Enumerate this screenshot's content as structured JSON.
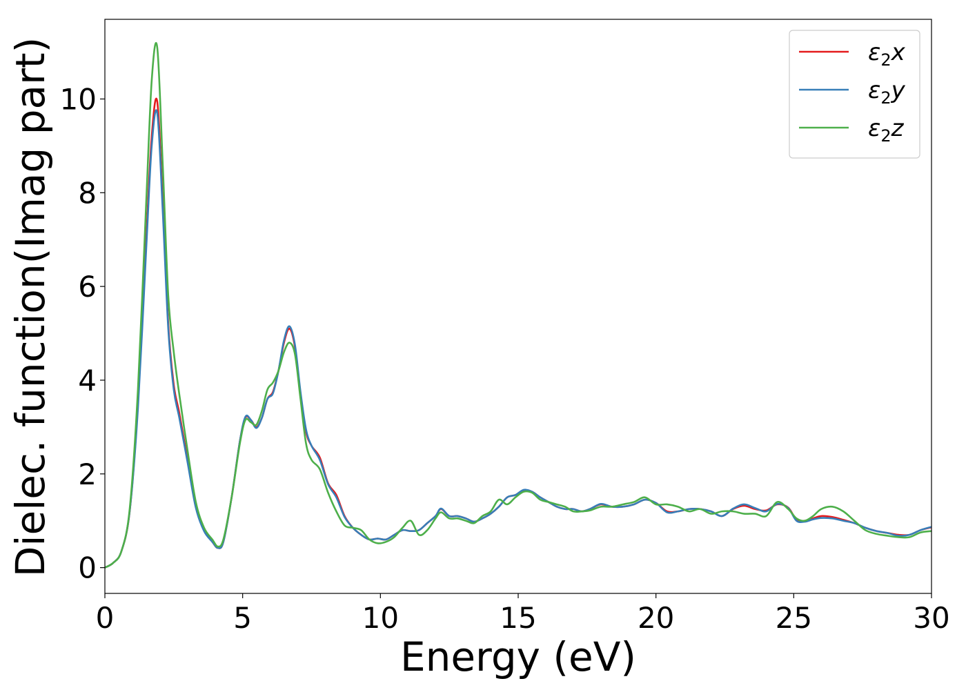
{
  "chart_data": {
    "type": "line",
    "title": "",
    "xlabel": "Energy (eV)",
    "ylabel": "Dielec. function(Imag part)",
    "xlim": [
      0,
      30
    ],
    "ylim": [
      -0.55,
      11.7
    ],
    "xticks": [
      0,
      5,
      10,
      15,
      20,
      25,
      30
    ],
    "yticks": [
      0,
      2,
      4,
      6,
      8,
      10
    ],
    "grid": false,
    "legend_position": "top-right",
    "series": [
      {
        "name": "ε₂x",
        "label_base": "ε",
        "label_sub": "2",
        "label_suffix": "x",
        "color": "#e41a1c",
        "x": [
          0,
          0.3,
          0.6,
          0.9,
          1.2,
          1.5,
          1.7,
          1.9,
          2.1,
          2.3,
          2.5,
          2.7,
          3.0,
          3.3,
          3.6,
          3.9,
          4.1,
          4.3,
          4.6,
          4.9,
          5.1,
          5.3,
          5.5,
          5.7,
          5.9,
          6.1,
          6.3,
          6.5,
          6.7,
          6.9,
          7.1,
          7.3,
          7.5,
          7.8,
          8.1,
          8.4,
          8.7,
          9.0,
          9.3,
          9.6,
          9.9,
          10.2,
          10.5,
          10.8,
          11.1,
          11.4,
          11.7,
          12.0,
          12.2,
          12.5,
          12.8,
          13.1,
          13.4,
          13.7,
          14.0,
          14.3,
          14.6,
          14.9,
          15.2,
          15.5,
          15.8,
          16.1,
          16.4,
          16.7,
          17.0,
          17.3,
          17.6,
          18.0,
          18.4,
          18.8,
          19.2,
          19.6,
          20.0,
          20.4,
          20.8,
          21.2,
          21.6,
          22.0,
          22.4,
          22.8,
          23.2,
          23.6,
          24.0,
          24.4,
          24.8,
          25.1,
          25.4,
          25.7,
          26.0,
          26.4,
          26.8,
          27.2,
          27.6,
          28.0,
          28.4,
          28.8,
          29.2,
          29.6,
          30.0
        ],
        "values": [
          0,
          0.1,
          0.35,
          1.2,
          3.5,
          7.0,
          9.2,
          9.95,
          7.8,
          5.2,
          3.9,
          3.3,
          2.3,
          1.3,
          0.8,
          0.55,
          0.42,
          0.55,
          1.5,
          2.7,
          3.2,
          3.15,
          3.0,
          3.2,
          3.6,
          3.75,
          4.2,
          4.8,
          5.1,
          4.7,
          3.7,
          2.9,
          2.6,
          2.35,
          1.8,
          1.55,
          1.1,
          0.85,
          0.7,
          0.6,
          0.62,
          0.6,
          0.7,
          0.8,
          0.78,
          0.8,
          0.95,
          1.1,
          1.25,
          1.1,
          1.1,
          1.05,
          0.98,
          1.05,
          1.15,
          1.3,
          1.5,
          1.55,
          1.65,
          1.62,
          1.5,
          1.4,
          1.3,
          1.25,
          1.25,
          1.2,
          1.25,
          1.35,
          1.3,
          1.3,
          1.35,
          1.45,
          1.38,
          1.2,
          1.2,
          1.25,
          1.25,
          1.2,
          1.1,
          1.25,
          1.32,
          1.25,
          1.22,
          1.35,
          1.28,
          1.02,
          1.0,
          1.05,
          1.1,
          1.08,
          1.02,
          0.95,
          0.85,
          0.78,
          0.74,
          0.7,
          0.7,
          0.8,
          0.86
        ]
      },
      {
        "name": "ε₂y",
        "label_base": "ε",
        "label_sub": "2",
        "label_suffix": "y",
        "color": "#377eb8",
        "x": [
          0,
          0.3,
          0.6,
          0.9,
          1.2,
          1.5,
          1.7,
          1.9,
          2.1,
          2.3,
          2.5,
          2.7,
          3.0,
          3.3,
          3.6,
          3.9,
          4.1,
          4.3,
          4.6,
          4.9,
          5.1,
          5.3,
          5.5,
          5.7,
          5.9,
          6.1,
          6.3,
          6.5,
          6.7,
          6.9,
          7.1,
          7.3,
          7.5,
          7.8,
          8.1,
          8.4,
          8.7,
          9.0,
          9.3,
          9.6,
          9.9,
          10.2,
          10.5,
          10.8,
          11.1,
          11.4,
          11.7,
          12.0,
          12.2,
          12.5,
          12.8,
          13.1,
          13.4,
          13.7,
          14.0,
          14.3,
          14.6,
          14.9,
          15.2,
          15.5,
          15.8,
          16.1,
          16.4,
          16.7,
          17.0,
          17.3,
          17.6,
          18.0,
          18.4,
          18.8,
          19.2,
          19.6,
          20.0,
          20.4,
          20.8,
          21.2,
          21.6,
          22.0,
          22.4,
          22.8,
          23.2,
          23.6,
          24.0,
          24.4,
          24.8,
          25.1,
          25.4,
          25.7,
          26.0,
          26.4,
          26.8,
          27.2,
          27.6,
          28.0,
          28.4,
          28.8,
          29.2,
          29.6,
          30.0
        ],
        "values": [
          0,
          0.1,
          0.35,
          1.2,
          3.4,
          6.8,
          9.0,
          9.7,
          7.6,
          5.1,
          3.8,
          3.2,
          2.25,
          1.28,
          0.78,
          0.55,
          0.42,
          0.55,
          1.5,
          2.7,
          3.22,
          3.15,
          2.98,
          3.2,
          3.6,
          3.72,
          4.2,
          4.85,
          5.15,
          4.75,
          3.75,
          2.95,
          2.6,
          2.3,
          1.78,
          1.5,
          1.08,
          0.85,
          0.7,
          0.6,
          0.62,
          0.6,
          0.7,
          0.8,
          0.78,
          0.8,
          0.95,
          1.1,
          1.26,
          1.1,
          1.1,
          1.05,
          0.98,
          1.05,
          1.15,
          1.3,
          1.5,
          1.55,
          1.66,
          1.62,
          1.5,
          1.4,
          1.3,
          1.25,
          1.25,
          1.2,
          1.25,
          1.36,
          1.3,
          1.3,
          1.35,
          1.45,
          1.38,
          1.18,
          1.2,
          1.25,
          1.25,
          1.2,
          1.1,
          1.26,
          1.35,
          1.27,
          1.2,
          1.36,
          1.27,
          1.0,
          0.98,
          1.03,
          1.06,
          1.05,
          1.0,
          0.95,
          0.85,
          0.78,
          0.74,
          0.68,
          0.7,
          0.8,
          0.87
        ]
      },
      {
        "name": "ε₂z",
        "label_base": "ε",
        "label_sub": "2",
        "label_suffix": "z",
        "color": "#4daf4a",
        "x": [
          0,
          0.3,
          0.6,
          0.9,
          1.2,
          1.5,
          1.7,
          1.9,
          2.1,
          2.3,
          2.5,
          2.7,
          3.0,
          3.3,
          3.6,
          3.9,
          4.1,
          4.3,
          4.6,
          4.9,
          5.1,
          5.3,
          5.5,
          5.7,
          5.9,
          6.1,
          6.3,
          6.5,
          6.7,
          6.9,
          7.1,
          7.3,
          7.5,
          7.8,
          8.1,
          8.4,
          8.7,
          9.0,
          9.3,
          9.6,
          9.9,
          10.2,
          10.5,
          10.8,
          11.1,
          11.4,
          11.7,
          12.0,
          12.2,
          12.5,
          12.8,
          13.1,
          13.4,
          13.7,
          14.0,
          14.3,
          14.6,
          14.9,
          15.2,
          15.5,
          15.8,
          16.1,
          16.4,
          16.7,
          17.0,
          17.3,
          17.6,
          18.0,
          18.4,
          18.8,
          19.2,
          19.6,
          20.0,
          20.4,
          20.8,
          21.2,
          21.6,
          22.0,
          22.4,
          22.8,
          23.2,
          23.6,
          24.0,
          24.4,
          24.8,
          25.1,
          25.4,
          25.7,
          26.0,
          26.4,
          26.8,
          27.2,
          27.6,
          28.0,
          28.4,
          28.8,
          29.2,
          29.6,
          30.0
        ],
        "values": [
          0,
          0.1,
          0.35,
          1.25,
          3.8,
          7.8,
          10.4,
          11.1,
          8.6,
          5.8,
          4.6,
          3.7,
          2.5,
          1.4,
          0.85,
          0.6,
          0.45,
          0.6,
          1.5,
          2.65,
          3.15,
          3.1,
          3.05,
          3.35,
          3.8,
          3.95,
          4.2,
          4.6,
          4.8,
          4.55,
          3.6,
          2.65,
          2.3,
          2.1,
          1.6,
          1.2,
          0.9,
          0.85,
          0.8,
          0.6,
          0.52,
          0.55,
          0.65,
          0.85,
          1.0,
          0.7,
          0.8,
          1.05,
          1.18,
          1.05,
          1.05,
          1.0,
          0.95,
          1.1,
          1.2,
          1.45,
          1.35,
          1.5,
          1.62,
          1.6,
          1.45,
          1.4,
          1.35,
          1.3,
          1.2,
          1.2,
          1.22,
          1.3,
          1.3,
          1.35,
          1.4,
          1.5,
          1.35,
          1.35,
          1.3,
          1.2,
          1.25,
          1.15,
          1.2,
          1.2,
          1.15,
          1.15,
          1.1,
          1.4,
          1.25,
          1.05,
          1.0,
          1.1,
          1.25,
          1.3,
          1.2,
          1.0,
          0.8,
          0.72,
          0.68,
          0.65,
          0.65,
          0.75,
          0.78
        ]
      }
    ]
  }
}
